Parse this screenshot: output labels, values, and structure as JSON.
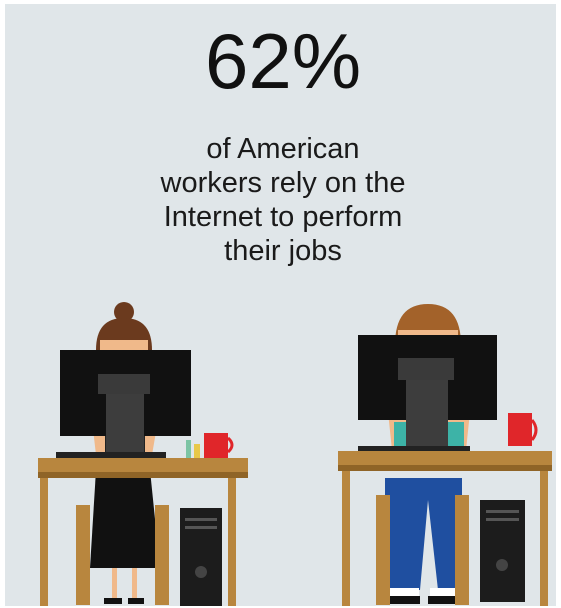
{
  "headline": "62%",
  "description": [
    "of American",
    "workers rely on the",
    "Internet to perform",
    "their jobs"
  ]
}
